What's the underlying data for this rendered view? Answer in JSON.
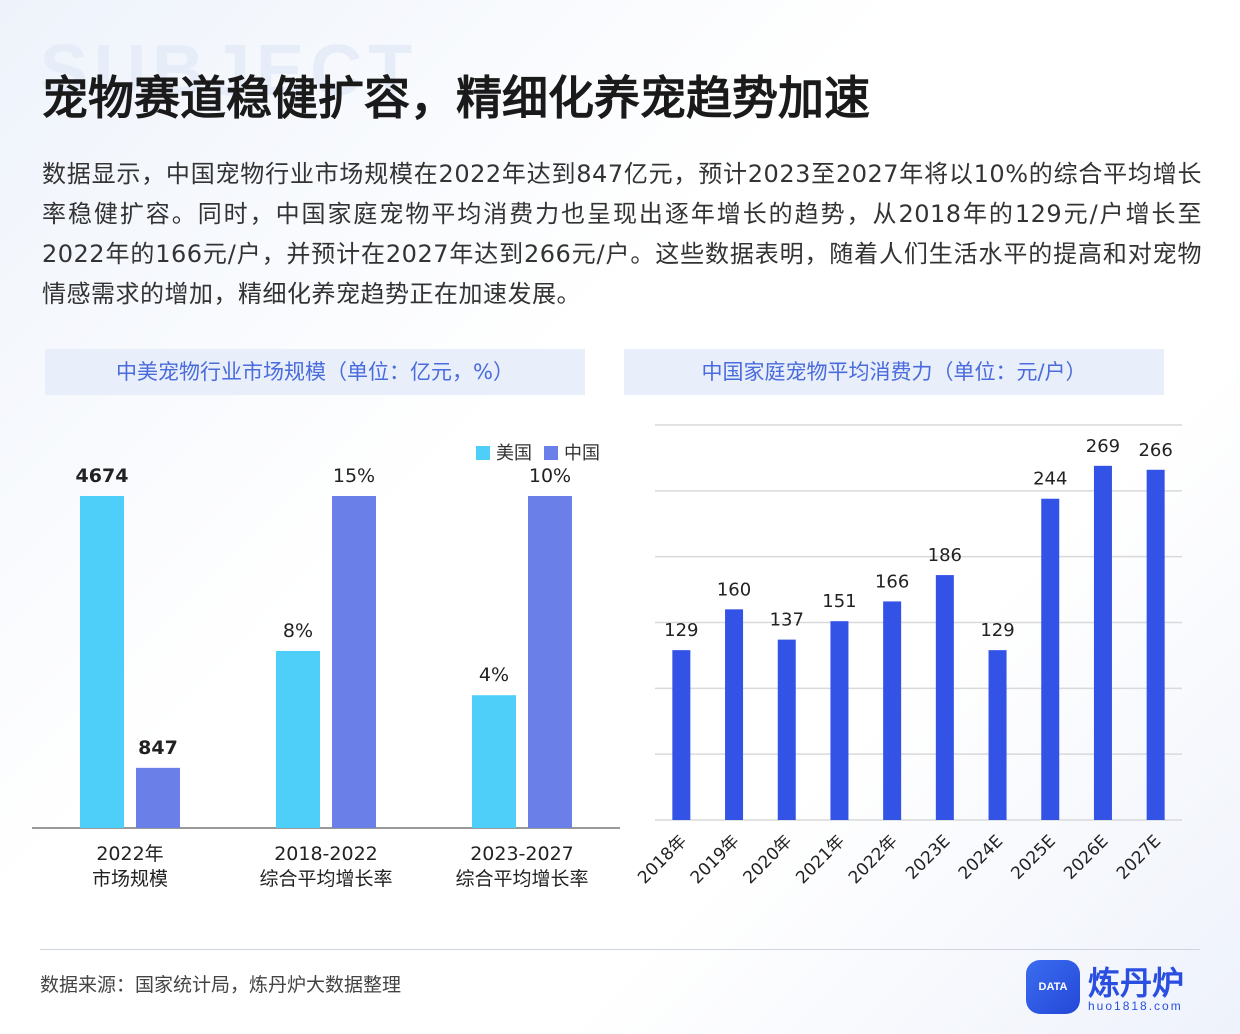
{
  "watermark": "SUBJECT",
  "title": "宠物赛道稳健扩容，精细化养宠趋势加速",
  "intro": "数据显示，中国宠物行业市场规模在2022年达到847亿元，预计2023至2027年将以10%的综合平均增长率稳健扩容。同时，中国家庭宠物平均消费力也呈现出逐年增长的趋势，从2018年的129元/户增长至2022年的166元/户，并预计在2027年达到266元/户。这些数据表明，随着人们生活水平的提高和对宠物情感需求的增加，精细化养宠趋势正在加速发展。",
  "source": "数据来源：国家统计局，炼丹炉大数据整理",
  "brand": {
    "badge": "DATA",
    "name": "炼丹炉",
    "url": "huo1818.com"
  },
  "colors": {
    "us": "#4dcffa",
    "cn": "#6b7fe8",
    "blue": "#3352e6"
  },
  "chart_data": [
    {
      "type": "bar",
      "title": "中美宠物行业市场规模（单位：亿元，%）",
      "legend": [
        "美国",
        "中国"
      ],
      "legend_position": "top-right",
      "categories": [
        [
          "2022年",
          "市场规模"
        ],
        [
          "2018-2022",
          "综合平均增长率"
        ],
        [
          "2023-2027",
          "综合平均增长率"
        ]
      ],
      "series": [
        {
          "name": "美国",
          "labels": [
            "4674",
            "8%",
            "4%"
          ],
          "values": [
            4674,
            8,
            4
          ]
        },
        {
          "name": "中国",
          "labels": [
            "847",
            "15%",
            "10%"
          ],
          "values": [
            847,
            15,
            10
          ]
        }
      ]
    },
    {
      "type": "bar",
      "title": "中国家庭宠物平均消费力（单位：元/户）",
      "categories": [
        "2018年",
        "2019年",
        "2020年",
        "2021年",
        "2022年",
        "2023E",
        "2024E",
        "2025E",
        "2026E",
        "2027E"
      ],
      "values": [
        129,
        160,
        137,
        151,
        166,
        186,
        129,
        244,
        269,
        266
      ],
      "ylim": [
        0,
        300
      ],
      "grid": true
    }
  ]
}
